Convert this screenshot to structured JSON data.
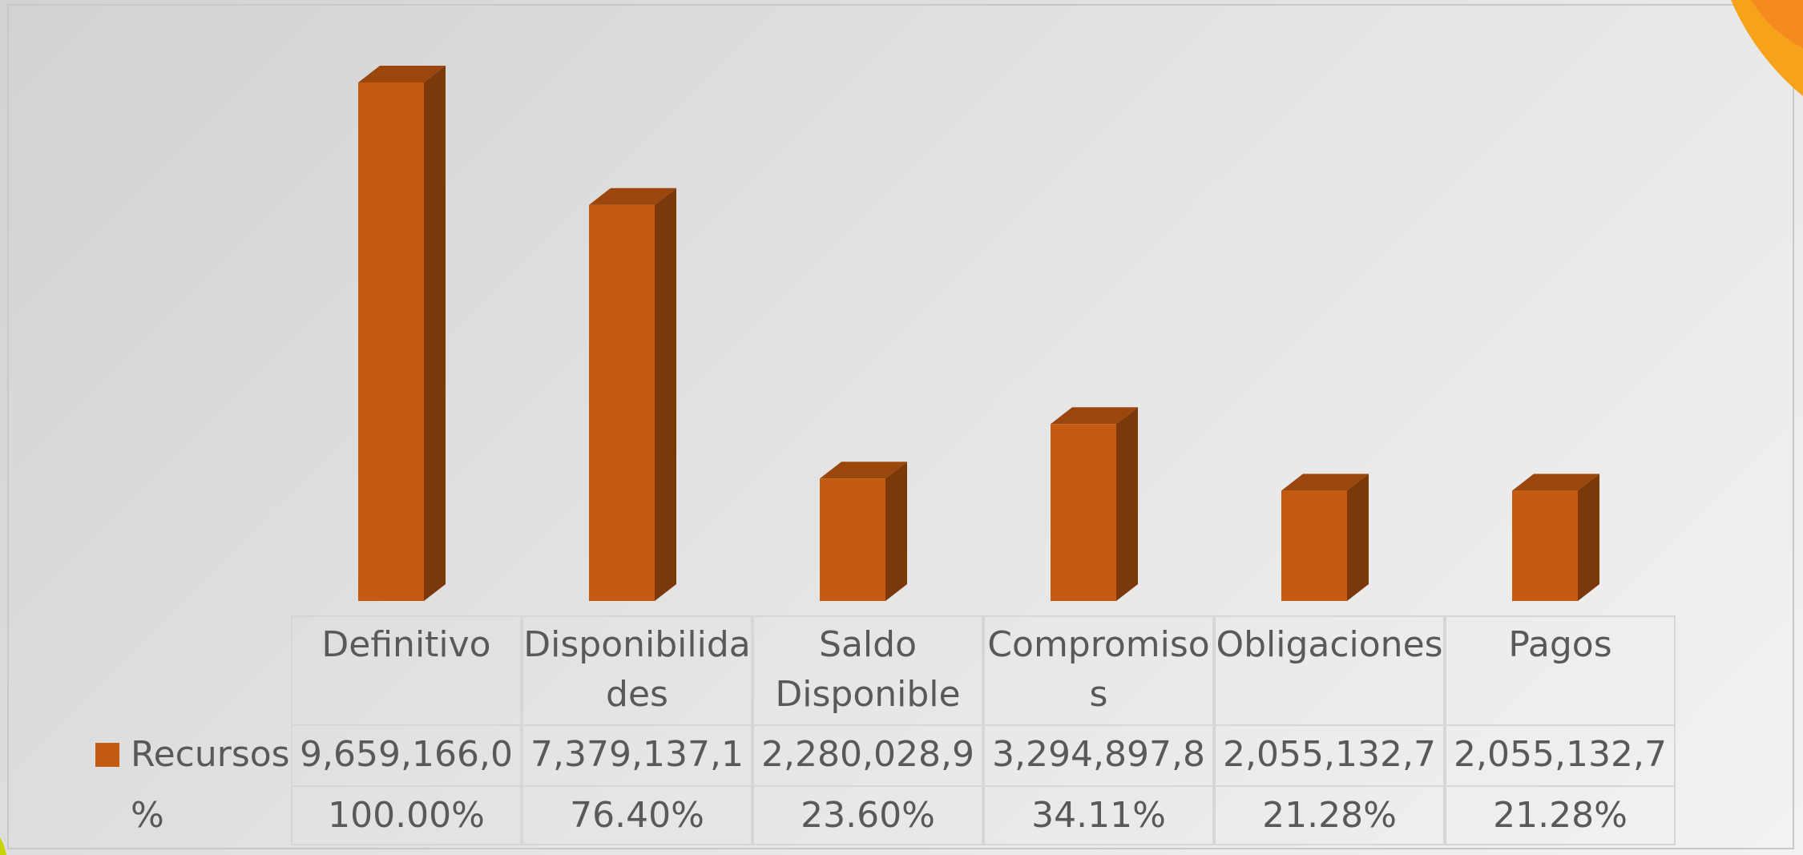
{
  "chart_data": {
    "type": "bar3d",
    "categories": [
      "Definitivo",
      "Disponibilidades",
      "Saldo Disponible",
      "Compromisos",
      "Obligaciones",
      "Pagos"
    ],
    "series": [
      {
        "name": "Recursos",
        "color": "#c55a11",
        "values": [
          9659166000,
          7379137100,
          2280028900,
          3294897800,
          2055132700,
          2055132700
        ],
        "value_labels": [
          "9,659,166,0",
          "7,379,137,1",
          "2,280,028,9",
          "3,294,897,8",
          "2,055,132,7",
          "2,055,132,7"
        ]
      }
    ],
    "table_rows": [
      {
        "name": "%",
        "values": [
          100.0,
          76.4,
          23.6,
          34.11,
          21.28,
          21.28
        ],
        "value_labels": [
          "100.00%",
          "76.40%",
          "23.60%",
          "34.11%",
          "21.28%",
          "21.28%"
        ]
      }
    ]
  }
}
